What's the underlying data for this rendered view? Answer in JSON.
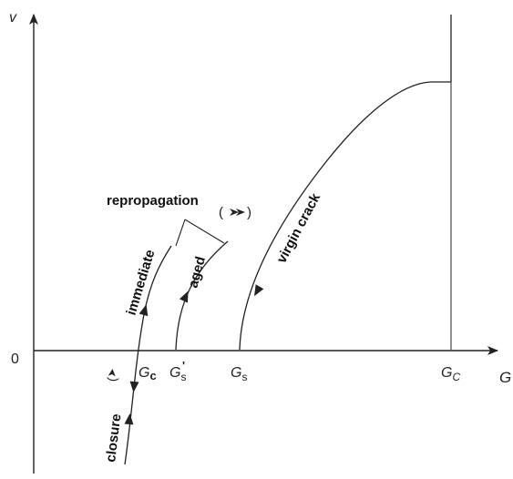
{
  "axes": {
    "y_label": "v",
    "x_label": "G",
    "origin_label": "0"
  },
  "x_markers": {
    "g_c_small": {
      "base": "G",
      "sub": "c"
    },
    "g_s_prime": {
      "base": "G",
      "sub": "s",
      "prime": "'"
    },
    "g_s": {
      "base": "G",
      "sub": "s"
    },
    "g_c_large": {
      "base": "G",
      "sub": "C"
    }
  },
  "curve_labels": {
    "virgin_crack": "virgin crack",
    "aged": "aged",
    "immediate": "immediate",
    "closure": "closure",
    "repropagation": "repropagation"
  }
}
